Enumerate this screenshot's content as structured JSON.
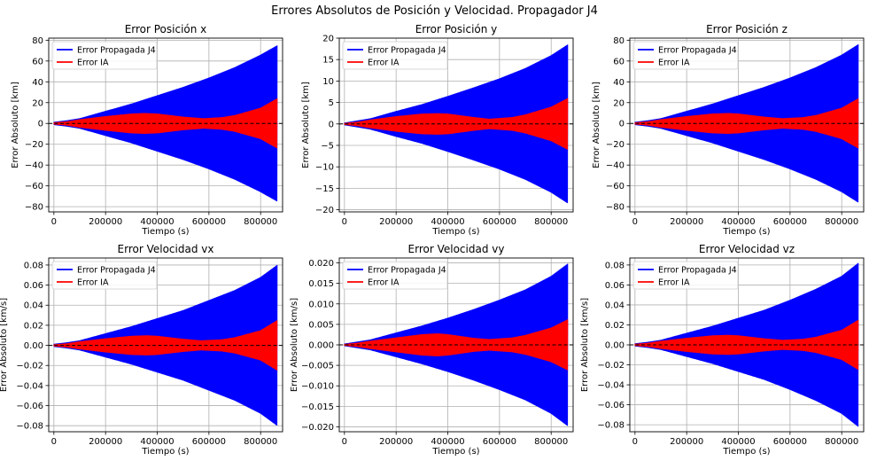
{
  "figure": {
    "title": "Errores Absolutos de Posición y Velocidad. Propagador J4"
  },
  "colors": {
    "series_propagated": "#0000ff",
    "series_ia": "#ff0000",
    "grid": "#b0b0b0",
    "zero_line": "#000000"
  },
  "chart_data": [
    {
      "type": "line",
      "title": "Error Posición x",
      "xlabel": "Tiempo (s)",
      "ylabel": "Error Absoluto [km]",
      "xlim": [
        -20000,
        885000
      ],
      "ylim": [
        -85,
        82
      ],
      "xticks": [
        0,
        200000,
        400000,
        600000,
        800000
      ],
      "yticks": [
        -80,
        -60,
        -40,
        -20,
        0,
        20,
        40,
        60,
        80
      ],
      "ytick_labels": [
        "−80",
        "−60",
        "−40",
        "−20",
        "0",
        "20",
        "40",
        "60",
        "80"
      ],
      "grid": true,
      "legend": "upper-left",
      "zero_line": true,
      "series": [
        {
          "name": "Error Propagada J4",
          "color": "#0000ff",
          "x": [
            0,
            50000,
            100000,
            200000,
            300000,
            400000,
            500000,
            600000,
            700000,
            800000,
            864000
          ],
          "envelope": [
            1.5,
            3,
            5,
            12,
            19,
            27,
            35,
            44,
            54,
            66,
            75
          ]
        },
        {
          "name": "Error IA",
          "color": "#ff0000",
          "x": [
            0,
            50000,
            100000,
            200000,
            300000,
            350000,
            400000,
            500000,
            580000,
            650000,
            700000,
            800000,
            864000
          ],
          "envelope": [
            1,
            2,
            4,
            7,
            9.5,
            10,
            9.5,
            6.5,
            5,
            6,
            8,
            15,
            24
          ]
        }
      ]
    },
    {
      "type": "line",
      "title": "Error Posición y",
      "xlabel": "Tiempo (s)",
      "ylabel": "Error Absoluto [km]",
      "xlim": [
        -20000,
        885000
      ],
      "ylim": [
        -20.5,
        20
      ],
      "xticks": [
        0,
        200000,
        400000,
        600000,
        800000
      ],
      "yticks": [
        -20,
        -15,
        -10,
        -5,
        0,
        5,
        10,
        15,
        20
      ],
      "ytick_labels": [
        "−20",
        "−15",
        "−10",
        "−5",
        "0",
        "5",
        "10",
        "15",
        "20"
      ],
      "grid": true,
      "legend": "upper-left",
      "zero_line": true,
      "series": [
        {
          "name": "Error Propagada J4",
          "color": "#0000ff",
          "x": [
            0,
            50000,
            100000,
            200000,
            300000,
            400000,
            500000,
            600000,
            700000,
            800000,
            864000
          ],
          "envelope": [
            0.3,
            0.8,
            1.3,
            3,
            4.6,
            6.5,
            8.5,
            10.6,
            13,
            16,
            18.5
          ]
        },
        {
          "name": "Error IA",
          "color": "#ff0000",
          "x": [
            0,
            50000,
            100000,
            200000,
            300000,
            360000,
            400000,
            500000,
            560000,
            650000,
            700000,
            800000,
            864000
          ],
          "envelope": [
            0.2,
            0.5,
            1,
            1.8,
            2.4,
            2.5,
            2.4,
            1.6,
            1.2,
            1.6,
            2.2,
            4,
            6
          ]
        }
      ]
    },
    {
      "type": "line",
      "title": "Error Posición z",
      "xlabel": "Tiempo (s)",
      "ylabel": "Error Absoluto [km]",
      "xlim": [
        -20000,
        885000
      ],
      "ylim": [
        -85,
        82
      ],
      "xticks": [
        0,
        200000,
        400000,
        600000,
        800000
      ],
      "yticks": [
        -80,
        -60,
        -40,
        -20,
        0,
        20,
        40,
        60,
        80
      ],
      "ytick_labels": [
        "−80",
        "−60",
        "−40",
        "−20",
        "0",
        "20",
        "40",
        "60",
        "80"
      ],
      "grid": true,
      "legend": "upper-left",
      "zero_line": true,
      "series": [
        {
          "name": "Error Propagada J4",
          "color": "#0000ff",
          "x": [
            0,
            50000,
            100000,
            200000,
            300000,
            400000,
            500000,
            600000,
            700000,
            800000,
            864000
          ],
          "envelope": [
            1.5,
            3,
            5,
            12,
            19,
            27,
            35,
            44,
            54,
            66,
            76
          ]
        },
        {
          "name": "Error IA",
          "color": "#ff0000",
          "x": [
            0,
            50000,
            100000,
            200000,
            300000,
            360000,
            400000,
            500000,
            570000,
            650000,
            700000,
            800000,
            864000
          ],
          "envelope": [
            1,
            2,
            4,
            7,
            9.5,
            10,
            9.5,
            6.5,
            5,
            6,
            8,
            15,
            24
          ]
        }
      ]
    },
    {
      "type": "line",
      "title": "Error Velocidad vx",
      "xlabel": "Tiempo (s)",
      "ylabel": "Error Absoluto [km/s]",
      "xlim": [
        -20000,
        885000
      ],
      "ylim": [
        -0.086,
        0.087
      ],
      "xticks": [
        0,
        200000,
        400000,
        600000,
        800000
      ],
      "yticks": [
        -0.08,
        -0.06,
        -0.04,
        -0.02,
        0,
        0.02,
        0.04,
        0.06,
        0.08
      ],
      "ytick_labels": [
        "−0.08",
        "−0.06",
        "−0.04",
        "−0.02",
        "0.00",
        "0.02",
        "0.04",
        "0.06",
        "0.08"
      ],
      "grid": true,
      "legend": "upper-left",
      "zero_line": true,
      "series": [
        {
          "name": "Error Propagada J4",
          "color": "#0000ff",
          "x": [
            0,
            50000,
            100000,
            200000,
            300000,
            400000,
            500000,
            600000,
            700000,
            800000,
            864000
          ],
          "envelope": [
            0.0015,
            0.003,
            0.005,
            0.012,
            0.019,
            0.027,
            0.035,
            0.045,
            0.055,
            0.068,
            0.08
          ]
        },
        {
          "name": "Error IA",
          "color": "#ff0000",
          "x": [
            0,
            50000,
            100000,
            200000,
            300000,
            360000,
            400000,
            500000,
            570000,
            650000,
            700000,
            800000,
            864000
          ],
          "envelope": [
            0.001,
            0.002,
            0.004,
            0.007,
            0.0095,
            0.01,
            0.0095,
            0.0065,
            0.005,
            0.006,
            0.008,
            0.015,
            0.025
          ]
        }
      ]
    },
    {
      "type": "line",
      "title": "Error Velocidad vy",
      "xlabel": "Tiempo (s)",
      "ylabel": "Error Absoluto [km/s]",
      "xlim": [
        -20000,
        885000
      ],
      "ylim": [
        -0.0212,
        0.0212
      ],
      "xticks": [
        0,
        200000,
        400000,
        600000,
        800000
      ],
      "yticks": [
        -0.02,
        -0.015,
        -0.01,
        -0.005,
        0,
        0.005,
        0.01,
        0.015,
        0.02
      ],
      "ytick_labels": [
        "−0.020",
        "−0.015",
        "−0.010",
        "−0.005",
        "0.000",
        "0.005",
        "0.010",
        "0.015",
        "0.020"
      ],
      "grid": true,
      "legend": "upper-left",
      "zero_line": true,
      "series": [
        {
          "name": "Error Propagada J4",
          "color": "#0000ff",
          "x": [
            0,
            50000,
            100000,
            200000,
            300000,
            400000,
            500000,
            600000,
            700000,
            800000,
            864000
          ],
          "envelope": [
            0.0003,
            0.0008,
            0.0013,
            0.003,
            0.0047,
            0.0066,
            0.0087,
            0.011,
            0.0135,
            0.0168,
            0.0198
          ]
        },
        {
          "name": "Error IA",
          "color": "#ff0000",
          "x": [
            0,
            50000,
            100000,
            200000,
            300000,
            360000,
            400000,
            500000,
            560000,
            650000,
            700000,
            800000,
            864000
          ],
          "envelope": [
            0.0002,
            0.0005,
            0.001,
            0.0018,
            0.0026,
            0.0028,
            0.0026,
            0.0017,
            0.0014,
            0.0018,
            0.0024,
            0.0042,
            0.0062
          ]
        }
      ]
    },
    {
      "type": "line",
      "title": "Error Velocidad vz",
      "xlabel": "Tiempo (s)",
      "ylabel": "Error Absoluto [km/s]",
      "xlim": [
        -20000,
        885000
      ],
      "ylim": [
        -0.087,
        0.087
      ],
      "xticks": [
        0,
        200000,
        400000,
        600000,
        800000
      ],
      "yticks": [
        -0.08,
        -0.06,
        -0.04,
        -0.02,
        0,
        0.02,
        0.04,
        0.06,
        0.08
      ],
      "ytick_labels": [
        "−0.08",
        "−0.06",
        "−0.04",
        "−0.02",
        "0.00",
        "0.02",
        "0.04",
        "0.06",
        "0.08"
      ],
      "grid": true,
      "legend": "upper-left",
      "zero_line": true,
      "series": [
        {
          "name": "Error Propagada J4",
          "color": "#0000ff",
          "x": [
            0,
            50000,
            100000,
            200000,
            300000,
            400000,
            500000,
            600000,
            700000,
            800000,
            864000
          ],
          "envelope": [
            0.0015,
            0.003,
            0.005,
            0.012,
            0.019,
            0.027,
            0.035,
            0.045,
            0.056,
            0.069,
            0.082
          ]
        },
        {
          "name": "Error IA",
          "color": "#ff0000",
          "x": [
            0,
            50000,
            100000,
            200000,
            300000,
            360000,
            400000,
            500000,
            570000,
            650000,
            700000,
            800000,
            864000
          ],
          "envelope": [
            0.001,
            0.002,
            0.004,
            0.007,
            0.0095,
            0.01,
            0.0095,
            0.0065,
            0.005,
            0.006,
            0.008,
            0.015,
            0.025
          ]
        }
      ]
    }
  ]
}
